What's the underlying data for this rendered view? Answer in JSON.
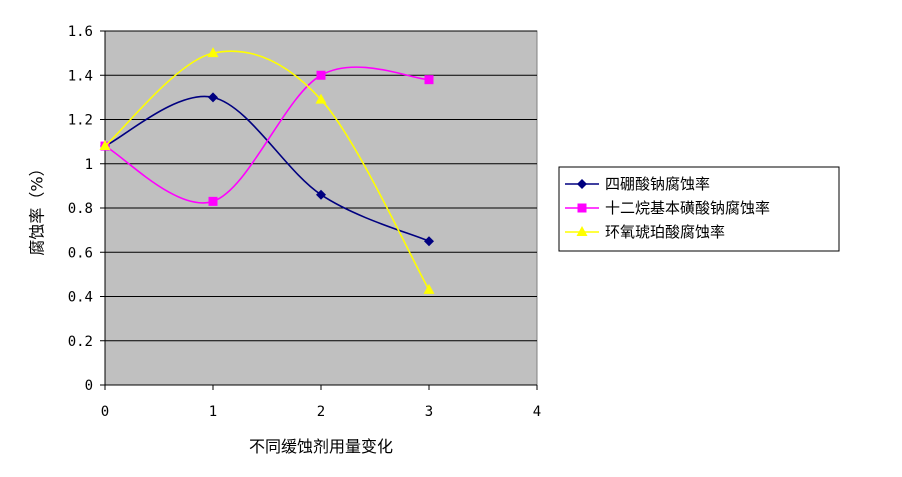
{
  "chart_data": {
    "type": "scatter",
    "xlabel": "不同缓蚀剂用量变化",
    "ylabel": "腐蚀率（%）",
    "xlim": [
      0,
      4
    ],
    "ylim": [
      0,
      1.6
    ],
    "x_ticks": [
      "0",
      "1",
      "2",
      "3",
      "4"
    ],
    "y_ticks": [
      "0",
      "0.2",
      "0.4",
      "0.6",
      "0.8",
      "1",
      "1.2",
      "1.4",
      "1.6"
    ],
    "grid": "horizontal",
    "plot_background": "#C0C0C0",
    "legend_position": "right",
    "series": [
      {
        "name": "四硼酸钠腐蚀率",
        "color": "#000080",
        "marker": "diamond",
        "x": [
          0,
          1,
          2,
          3
        ],
        "y": [
          1.08,
          1.3,
          0.86,
          0.65
        ]
      },
      {
        "name": "十二烷基本磺酸钠腐蚀率",
        "color": "#FF00FF",
        "marker": "square",
        "x": [
          0,
          1,
          2,
          3
        ],
        "y": [
          1.08,
          0.83,
          1.4,
          1.38
        ]
      },
      {
        "name": "环氧琥珀酸腐蚀率",
        "color": "#FFFF00",
        "marker": "triangle",
        "x": [
          0,
          1,
          2,
          3
        ],
        "y": [
          1.08,
          1.5,
          1.29,
          0.43
        ]
      }
    ]
  }
}
